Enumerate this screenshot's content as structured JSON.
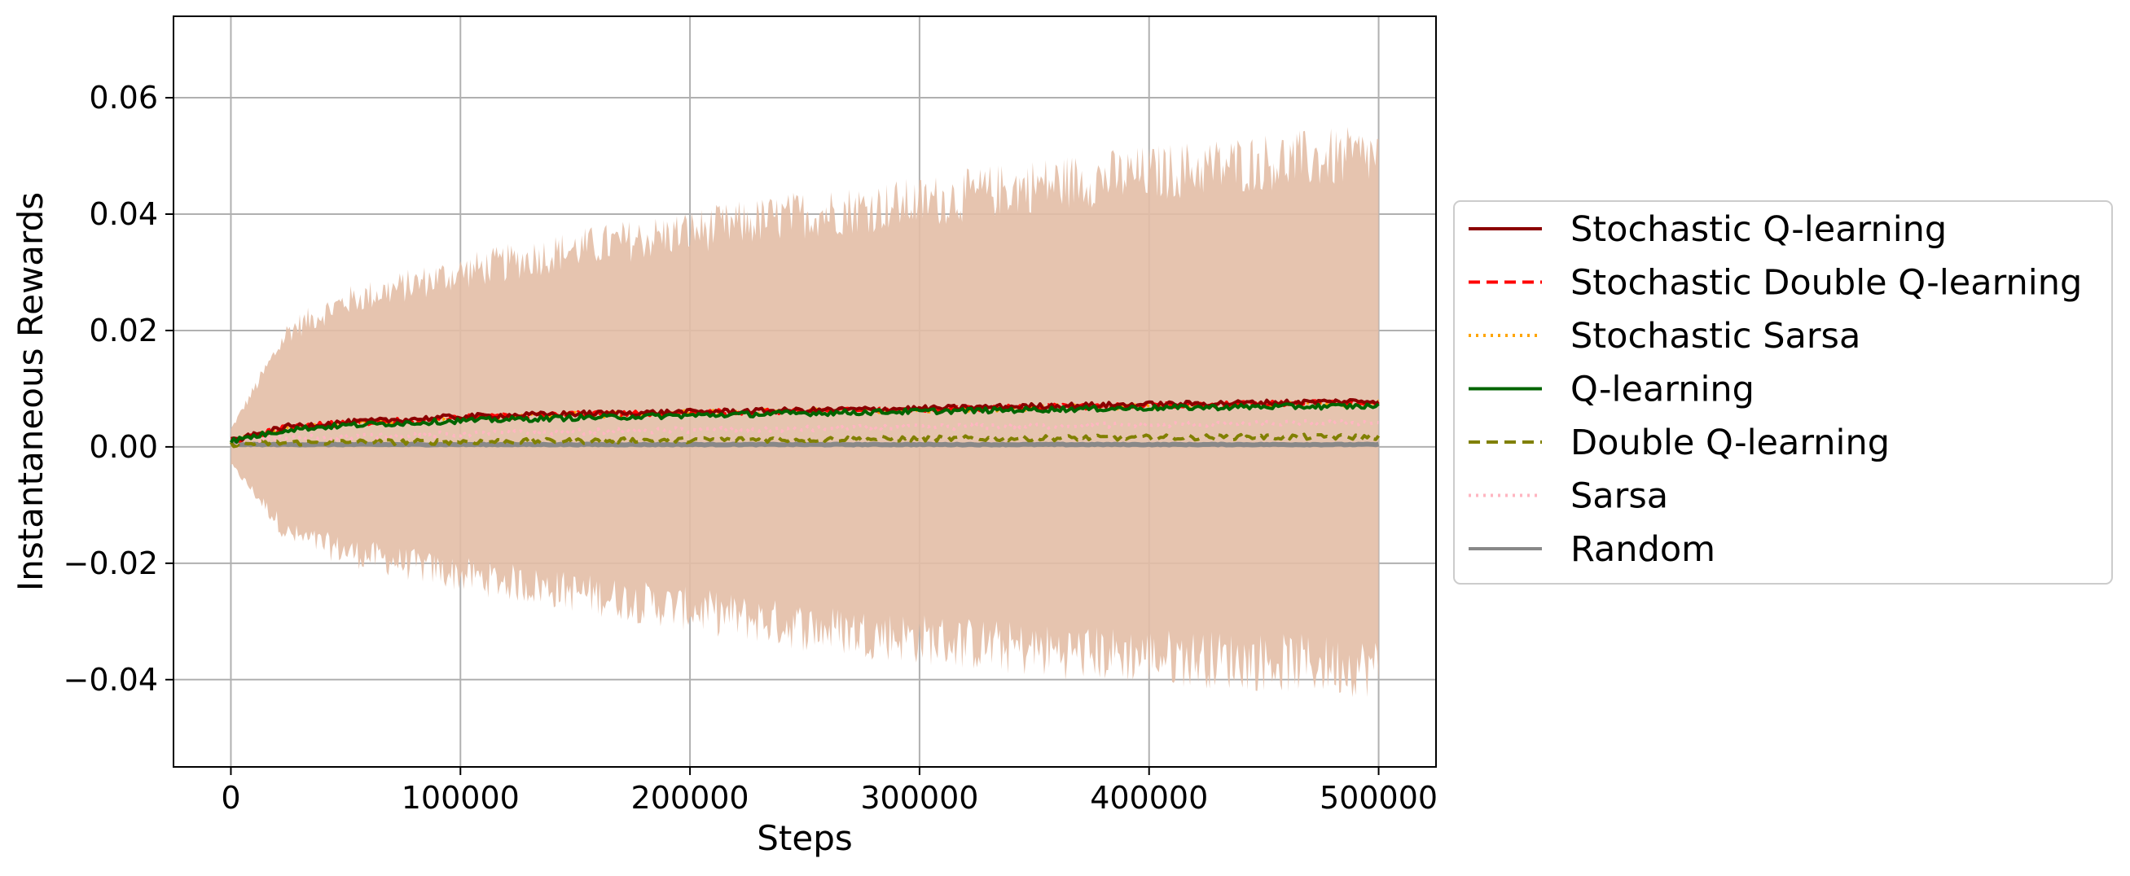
{
  "chart_data": {
    "type": "line",
    "title": "",
    "xlabel": "Steps",
    "ylabel": "Instantaneous Rewards",
    "xlim": [
      -25000,
      525000
    ],
    "ylim": [
      -0.055,
      0.074
    ],
    "x_ticks": [
      0,
      100000,
      200000,
      300000,
      400000,
      500000
    ],
    "x_tick_labels": [
      "0",
      "100000",
      "200000",
      "300000",
      "400000",
      "500000"
    ],
    "y_ticks": [
      -0.04,
      -0.02,
      0.0,
      0.02,
      0.04,
      0.06
    ],
    "y_tick_labels": [
      "−0.04",
      "−0.02",
      "0.00",
      "0.02",
      "0.04",
      "0.06"
    ],
    "grid": true,
    "legend_position": "right, outside",
    "x": [
      0,
      25000,
      50000,
      100000,
      150000,
      200000,
      250000,
      300000,
      350000,
      400000,
      450000,
      500000
    ],
    "band": {
      "color": "#e3bea6",
      "upper": [
        0.003,
        0.02,
        0.025,
        0.03,
        0.034,
        0.037,
        0.04,
        0.042,
        0.045,
        0.047,
        0.049,
        0.05
      ],
      "lower": [
        -0.003,
        -0.015,
        -0.018,
        -0.022,
        -0.025,
        -0.028,
        -0.031,
        -0.033,
        -0.035,
        -0.036,
        -0.037,
        -0.038
      ]
    },
    "series": [
      {
        "name": "Stochastic Q-learning",
        "color": "#8b0000",
        "dash": "solid",
        "values": [
          0.001,
          0.0035,
          0.0042,
          0.0052,
          0.0057,
          0.006,
          0.0063,
          0.0066,
          0.007,
          0.0073,
          0.0076,
          0.0079
        ]
      },
      {
        "name": "Stochastic Double Q-learning",
        "color": "#ff0000",
        "dash": "dashed",
        "values": [
          0.001,
          0.0034,
          0.0041,
          0.005,
          0.0056,
          0.0059,
          0.0062,
          0.0065,
          0.0068,
          0.0071,
          0.0074,
          0.0076
        ]
      },
      {
        "name": "Stochastic Sarsa",
        "color": "#ffa500",
        "dash": "dotted",
        "values": [
          0.001,
          0.0033,
          0.004,
          0.0049,
          0.0055,
          0.0058,
          0.0061,
          0.0064,
          0.0067,
          0.007,
          0.0073,
          0.0075
        ]
      },
      {
        "name": "Q-learning",
        "color": "#006400",
        "dash": "solid",
        "values": [
          0.001,
          0.003,
          0.0037,
          0.0045,
          0.005,
          0.0054,
          0.0058,
          0.0061,
          0.0064,
          0.0067,
          0.0069,
          0.007
        ]
      },
      {
        "name": "Double Q-learning",
        "color": "#808000",
        "dash": "dashed",
        "values": [
          0.0005,
          0.0007,
          0.0008,
          0.0009,
          0.001,
          0.0012,
          0.0013,
          0.0014,
          0.0015,
          0.0016,
          0.0017,
          0.0017
        ]
      },
      {
        "name": "Sarsa",
        "color": "#ffb6c1",
        "dash": "dotted",
        "values": [
          0.001,
          0.0015,
          0.0018,
          0.0022,
          0.0026,
          0.0029,
          0.0031,
          0.0034,
          0.0036,
          0.0038,
          0.004,
          0.0042
        ]
      },
      {
        "name": "Random",
        "color": "#888888",
        "dash": "solid",
        "values": [
          0.0004,
          0.0004,
          0.0004,
          0.0004,
          0.0004,
          0.0004,
          0.0004,
          0.0004,
          0.0004,
          0.0004,
          0.0004,
          0.0004
        ]
      }
    ]
  }
}
